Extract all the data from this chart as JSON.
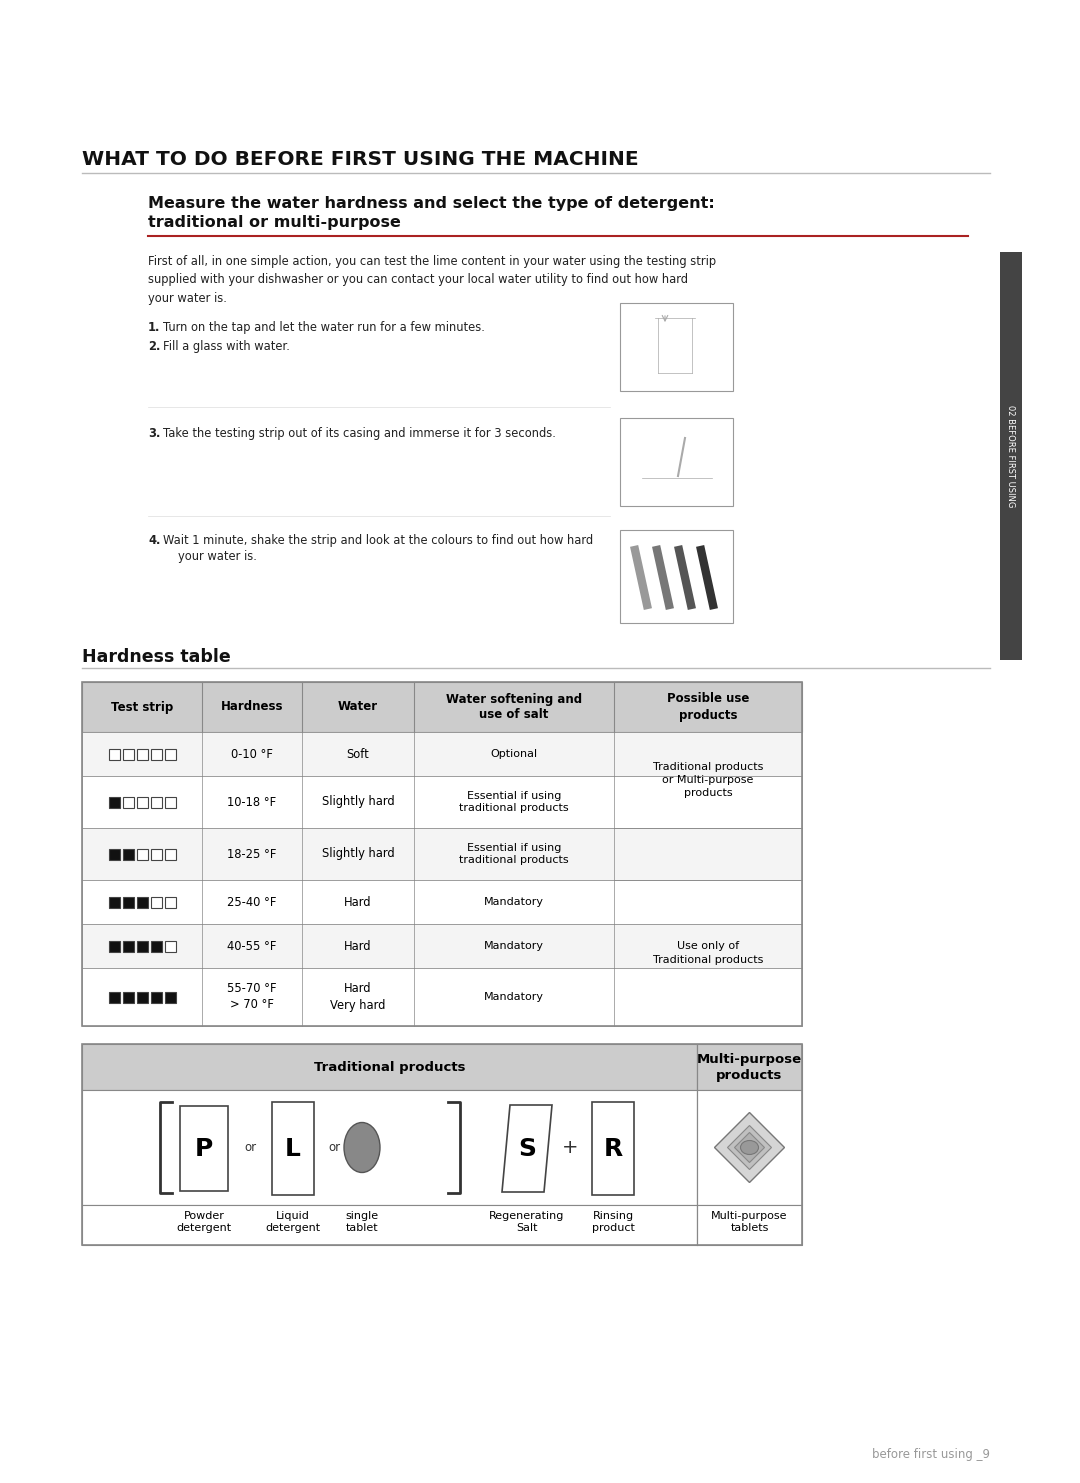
{
  "page_title": "WHAT TO DO BEFORE FIRST USING THE MACHINE",
  "section_title_line1": "Measure the water hardness and select the type of detergent:",
  "section_title_line2": "traditional or multi-purpose",
  "intro_text": "First of all, in one simple action, you can test the lime content in your water using the testing strip\nsupplied with your dishwasher or you can contact your local water utility to find out how hard\nyour water is.",
  "step1_num": "1.",
  "step1_text": "Turn on the tap and let the water run for a few minutes.",
  "step2_num": "2.",
  "step2_text": "Fill a glass with water.",
  "step3_num": "3.",
  "step3_text": "Take the testing strip out of its casing and immerse it for 3 seconds.",
  "step4_num": "4.",
  "step4_text_line1": "Wait 1 minute, shake the strip and look at the colours to find out how hard",
  "step4_text_line2": "your water is.",
  "hardness_title": "Hardness table",
  "table_headers": [
    "Test strip",
    "Hardness",
    "Water",
    "Water softening and\nuse of salt",
    "Possible use\nproducts"
  ],
  "table_strips": [
    [
      0,
      0,
      0,
      0,
      0
    ],
    [
      1,
      0,
      0,
      0,
      0
    ],
    [
      1,
      1,
      0,
      0,
      0
    ],
    [
      1,
      1,
      1,
      0,
      0
    ],
    [
      1,
      1,
      1,
      1,
      0
    ],
    [
      1,
      1,
      1,
      1,
      1
    ]
  ],
  "table_hardness": [
    "0-10 °F",
    "10-18 °F",
    "18-25 °F",
    "25-40 °F",
    "40-55 °F",
    "55-70 °F\n> 70 °F"
  ],
  "table_water": [
    "Soft",
    "Slightly hard",
    "Slightly hard",
    "Hard",
    "Hard",
    "Hard\nVery hard"
  ],
  "table_softening": [
    "Optional",
    "Essential if using\ntraditional products",
    "Essential if using\ntraditional products",
    "Mandatory",
    "Mandatory",
    "Mandatory"
  ],
  "possible_span1_text": "Traditional products\nor Multi-purpose\nproducts",
  "possible_span2_text": "Use only of\nTraditional products",
  "products_header_left": "Traditional products",
  "products_header_right": "Multi-purpose\nproducts",
  "sidebar_text": "02 BEFORE FIRST USING",
  "footer_text": "before first using _9",
  "bg_color": "#ffffff",
  "header_bg": "#cccccc",
  "accent_line_color": "#aa2222",
  "sidebar_color": "#555555",
  "table_border_color": "#888888",
  "gray_line_color": "#bbbbbb"
}
